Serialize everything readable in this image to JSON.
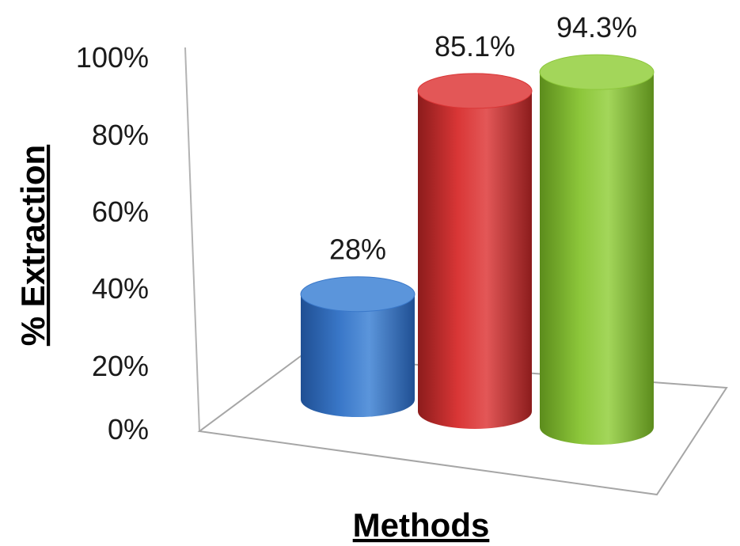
{
  "chart_data": {
    "type": "bar",
    "style": "3d-cylinder",
    "categories": [
      "",
      "",
      ""
    ],
    "values": [
      28,
      85.1,
      94.3
    ],
    "data_labels": [
      "28%",
      "85.1%",
      "94.3%"
    ],
    "ylabel": "% Extraction",
    "xlabel": "Methods",
    "ylim": [
      0,
      100
    ],
    "yticks": [
      "0%",
      "20%",
      "40%",
      "60%",
      "80%",
      "100%"
    ],
    "grid": false,
    "legend": "none"
  },
  "colors": {
    "bars": [
      "#3a78c9",
      "#d93636",
      "#8cc63a"
    ],
    "bar_tops": [
      "#5b95db",
      "#e35757",
      "#a3d65a"
    ],
    "bar_dark": [
      "#1f4f93",
      "#8c1c1c",
      "#5c8c1c"
    ],
    "floor_stroke": "#a6a6a6"
  }
}
